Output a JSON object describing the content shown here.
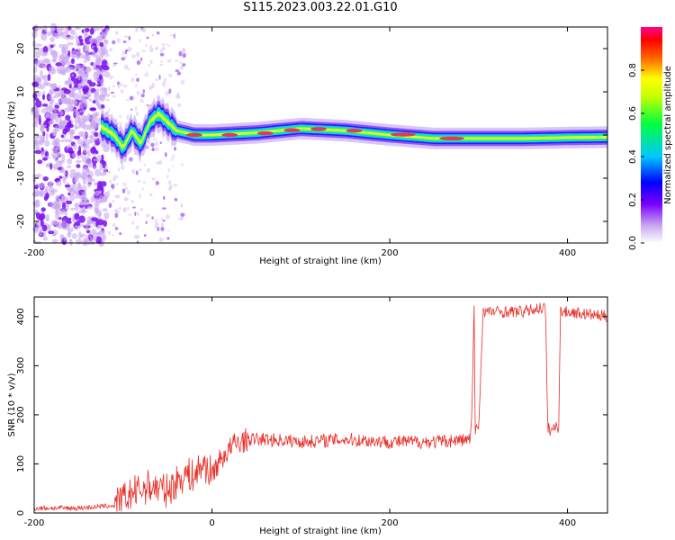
{
  "title": "S115.2023.003.22.01.G10",
  "colors": {
    "snr_line": "#e8302a",
    "ridge": "#e23a55",
    "colormap": [
      "#e8d8f8",
      "#7a00ff",
      "#0000ff",
      "#00e0ff",
      "#00ff40",
      "#ffff00",
      "#ff8000",
      "#ff0000",
      "#ff00a0"
    ]
  },
  "chart_data": [
    {
      "type": "heatmap",
      "xlabel": "Height of straight line (km)",
      "ylabel": "Frequency (Hz)",
      "xlim": [
        -200,
        445
      ],
      "ylim": [
        -25,
        25
      ],
      "xticks": [
        -200,
        0,
        200,
        400
      ],
      "yticks": [
        -20,
        -10,
        0,
        10,
        20
      ],
      "colorbar": {
        "label": "Normalized spectral amplitude",
        "range": [
          0,
          1
        ],
        "ticks": [
          0.0,
          0.2,
          0.4,
          0.6,
          0.8
        ]
      },
      "ridge": {
        "x": [
          -125,
          -110,
          -100,
          -90,
          -80,
          -70,
          -60,
          -40,
          -20,
          0,
          50,
          100,
          150,
          200,
          250,
          300,
          350,
          400,
          445
        ],
        "y": [
          2,
          0,
          -3,
          1,
          -2,
          3,
          5,
          1,
          0,
          0,
          0.5,
          1.5,
          1,
          0,
          -0.8,
          -0.8,
          -0.8,
          -0.6,
          -0.5
        ]
      },
      "grid": false
    },
    {
      "type": "line",
      "xlabel": "Height of straight line (km)",
      "ylabel": "SNR (10 * v/v)",
      "xlim": [
        -200,
        445
      ],
      "ylim": [
        0,
        440
      ],
      "xticks": [
        -200,
        0,
        200,
        400
      ],
      "yticks": [
        0,
        100,
        200,
        300,
        400
      ],
      "series": [
        {
          "x": [
            -200,
            -150,
            -110,
            -90,
            -70,
            -50,
            -30,
            -20,
            -10,
            0,
            10,
            25,
            40,
            60,
            80,
            100,
            150,
            200,
            250,
            290,
            292,
            295,
            296,
            300,
            305,
            350,
            375,
            378,
            380,
            390,
            392,
            400,
            445
          ],
          "y": [
            10,
            10,
            15,
            40,
            55,
            45,
            80,
            75,
            100,
            80,
            110,
            140,
            150,
            150,
            148,
            145,
            150,
            145,
            145,
            150,
            175,
            420,
            170,
            175,
            410,
            410,
            420,
            170,
            170,
            175,
            410,
            410,
            400
          ]
        }
      ],
      "grid": false
    }
  ]
}
